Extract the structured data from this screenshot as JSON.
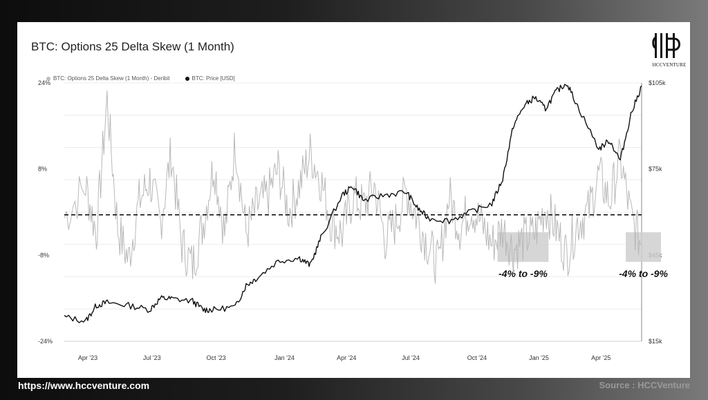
{
  "footer": {
    "url": "https://www.hccventure.com",
    "source": "Source : HCCVenture"
  },
  "logo": {
    "text": "HCCVENTURE"
  },
  "chart_data": {
    "type": "line",
    "title": "BTC: Options 25 Delta Skew (1 Month)",
    "legend_placement": "top-left",
    "grid": true,
    "x_labels": [
      "Apr '23",
      "Jul '23",
      "Oct '23",
      "Jan '24",
      "Apr '24",
      "Jul '24",
      "Oct '24",
      "Jan '25",
      "Apr '25"
    ],
    "x_range": [
      "2023-02",
      "2025-05"
    ],
    "y_left": {
      "ticks": [
        "24%",
        "8%",
        "-8%",
        "-24%"
      ],
      "range": [
        -24,
        24
      ],
      "unit": "%"
    },
    "y_right": {
      "ticks": [
        "$105k",
        "$75k",
        "$45k",
        "$15k"
      ],
      "range": [
        15000,
        105000
      ],
      "unit": "USD"
    },
    "reference_line": {
      "axis": "left",
      "value": -0.5,
      "style": "dashed"
    },
    "series": [
      {
        "name": "BTC: Options 25 Delta Skew (1 Month) - Deribit",
        "axis": "left",
        "color": "#b8b8b8",
        "x": [
          "2023-02",
          "2023-03",
          "2023-03",
          "2023-04",
          "2023-04",
          "2023-05",
          "2023-05",
          "2023-06",
          "2023-06",
          "2023-07",
          "2023-07",
          "2023-08",
          "2023-08",
          "2023-09",
          "2023-09",
          "2023-10",
          "2023-10",
          "2023-11",
          "2023-11",
          "2023-12",
          "2023-12",
          "2024-01",
          "2024-01",
          "2024-02",
          "2024-02",
          "2024-03",
          "2024-03",
          "2024-04",
          "2024-04",
          "2024-05",
          "2024-05",
          "2024-06",
          "2024-06",
          "2024-07",
          "2024-07",
          "2024-08",
          "2024-08",
          "2024-09",
          "2024-09",
          "2024-10",
          "2024-10",
          "2024-11",
          "2024-11",
          "2024-12",
          "2024-12",
          "2025-01",
          "2025-01",
          "2025-02",
          "2025-02",
          "2025-03",
          "2025-03",
          "2025-04",
          "2025-04",
          "2025-05"
        ],
        "values": [
          -1,
          5,
          -4,
          21,
          -3,
          -9,
          2,
          6,
          -2,
          11,
          -6,
          -10,
          -2,
          9,
          -4,
          13,
          -4,
          1,
          3,
          8,
          0,
          5,
          11,
          6,
          -2,
          -4,
          3,
          1,
          5,
          -5,
          -2,
          4,
          -1,
          -6,
          -10,
          3,
          -3,
          1,
          -2,
          -6,
          -3,
          -7,
          -5,
          -4,
          1,
          -3,
          -8,
          -2,
          0,
          7,
          2,
          10,
          -1,
          -6
        ]
      },
      {
        "name": "BTC: Price [USD]",
        "axis": "right",
        "color": "#111111",
        "x": [
          "2023-02",
          "2023-03",
          "2023-03",
          "2023-04",
          "2023-05",
          "2023-06",
          "2023-06",
          "2023-07",
          "2023-08",
          "2023-08",
          "2023-09",
          "2023-10",
          "2023-10",
          "2023-11",
          "2023-12",
          "2024-01",
          "2024-01",
          "2024-02",
          "2024-03",
          "2024-03",
          "2024-04",
          "2024-05",
          "2024-06",
          "2024-06",
          "2024-07",
          "2024-08",
          "2024-09",
          "2024-10",
          "2024-10",
          "2024-11",
          "2024-11",
          "2024-12",
          "2024-12",
          "2025-01",
          "2025-01",
          "2025-02",
          "2025-03",
          "2025-03",
          "2025-04",
          "2025-04",
          "2025-05"
        ],
        "values": [
          23500,
          22000,
          27500,
          28500,
          27500,
          26000,
          30000,
          29800,
          29000,
          26000,
          26000,
          27000,
          34500,
          37000,
          43000,
          44000,
          41500,
          51000,
          66000,
          69000,
          64000,
          66000,
          67000,
          61500,
          58000,
          57000,
          60000,
          63000,
          71500,
          90000,
          97000,
          100000,
          96000,
          102000,
          105000,
          97000,
          82000,
          85000,
          78000,
          94000,
          104000
        ]
      }
    ],
    "shaded_zones": [
      {
        "x_start": "2024-10",
        "x_end": "2024-12",
        "y_min": -4,
        "y_max": -9,
        "label": "-4% to -9%"
      },
      {
        "x_start": "2025-04",
        "x_end": "2025-05",
        "y_min": -4,
        "y_max": -9,
        "label": "-4% to -9%"
      }
    ]
  }
}
